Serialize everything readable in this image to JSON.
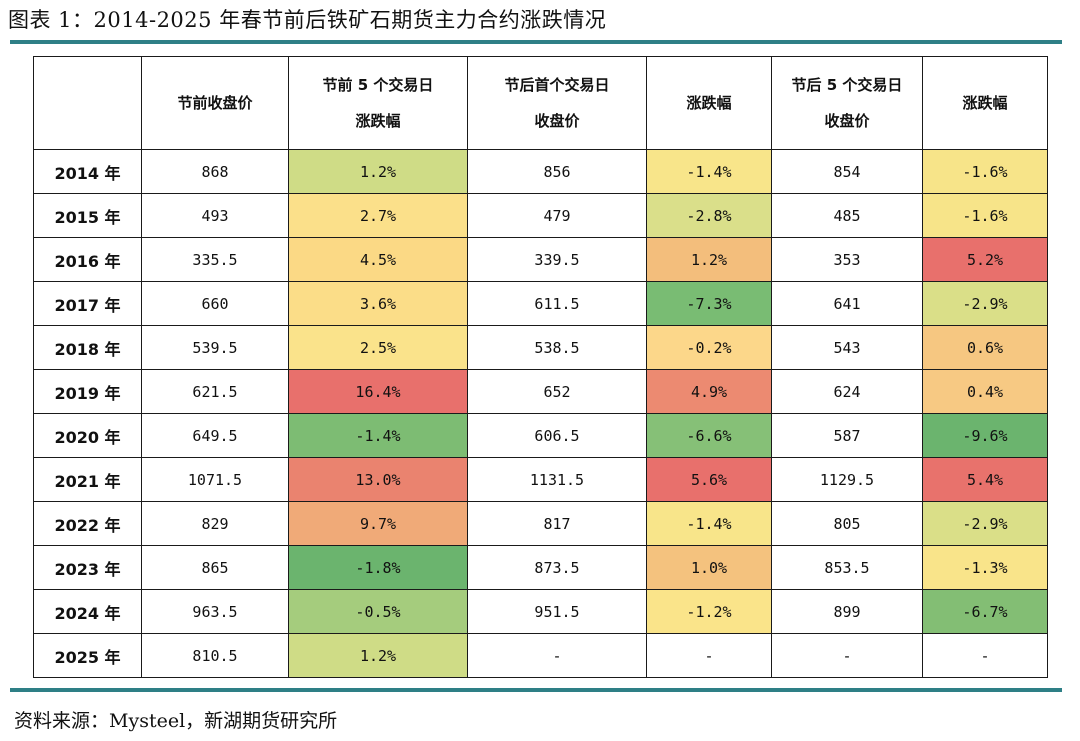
{
  "title": "图表 1：2014-2025 年春节前后铁矿石期货主力合约涨跌情况",
  "source": "资料来源：Mysteel，新湖期货研究所",
  "colors": {
    "rule": "#2e7f86"
  },
  "headers": [
    {
      "lines": [
        ""
      ]
    },
    {
      "lines": [
        "节前收盘价"
      ]
    },
    {
      "lines": [
        "节前 5 个交易日",
        "涨跌幅"
      ]
    },
    {
      "lines": [
        "节后首个交易日",
        "收盘价"
      ]
    },
    {
      "lines": [
        "涨跌幅"
      ]
    },
    {
      "lines": [
        "节后 5 个交易日",
        "收盘价"
      ]
    },
    {
      "lines": [
        "涨跌幅"
      ]
    }
  ],
  "rows": [
    {
      "year": "2014 年",
      "pre_close": "868",
      "pre5": "1.2%",
      "pre5_color": "#cfdc86",
      "post1_close": "856",
      "post1": "-1.4%",
      "post1_color": "#f8e58a",
      "post5_close": "854",
      "post5": "-1.6%",
      "post5_color": "#f7e489"
    },
    {
      "year": "2015 年",
      "pre_close": "493",
      "pre5": "2.7%",
      "pre5_color": "#fbe08a",
      "post1_close": "479",
      "post1": "-2.8%",
      "post1_color": "#dadf8a",
      "post5_close": "485",
      "post5": "-1.6%",
      "post5_color": "#f7e489"
    },
    {
      "year": "2016 年",
      "pre_close": "335.5",
      "pre5": "4.5%",
      "pre5_color": "#fbd985",
      "post1_close": "339.5",
      "post1": "1.2%",
      "post1_color": "#f3be7c",
      "post5_close": "353",
      "post5": "5.2%",
      "post5_color": "#e8706c"
    },
    {
      "year": "2017 年",
      "pre_close": "660",
      "pre5": "3.6%",
      "pre5_color": "#fbdd88",
      "post1_close": "611.5",
      "post1": "-7.3%",
      "post1_color": "#79bc73",
      "post5_close": "641",
      "post5": "-2.9%",
      "post5_color": "#dadf88"
    },
    {
      "year": "2018 年",
      "pre_close": "539.5",
      "pre5": "2.5%",
      "pre5_color": "#fae38b",
      "post1_close": "538.5",
      "post1": "-0.2%",
      "post1_color": "#fcd78a",
      "post5_close": "543",
      "post5": "0.6%",
      "post5_color": "#f6c781"
    },
    {
      "year": "2019 年",
      "pre_close": "621.5",
      "pre5": "16.4%",
      "pre5_color": "#e8706c",
      "post1_close": "652",
      "post1": "4.9%",
      "post1_color": "#ec8a71",
      "post5_close": "624",
      "post5": "0.4%",
      "post5_color": "#f7c983"
    },
    {
      "year": "2020 年",
      "pre_close": "649.5",
      "pre5": "-1.4%",
      "pre5_color": "#7dbc73",
      "post1_close": "606.5",
      "post1": "-6.6%",
      "post1_color": "#86c077",
      "post5_close": "587",
      "post5": "-9.6%",
      "post5_color": "#6bb46e"
    },
    {
      "year": "2021 年",
      "pre_close": "1071.5",
      "pre5": "13.0%",
      "pre5_color": "#ea836f",
      "post1_close": "1131.5",
      "post1": "5.6%",
      "post1_color": "#e8706c",
      "post5_close": "1129.5",
      "post5": "5.4%",
      "post5_color": "#e8726c"
    },
    {
      "year": "2022 年",
      "pre_close": "829",
      "pre5": "9.7%",
      "pre5_color": "#f0aa78",
      "post1_close": "817",
      "post1": "-1.4%",
      "post1_color": "#f8e58a",
      "post5_close": "805",
      "post5": "-2.9%",
      "post5_color": "#dadf88"
    },
    {
      "year": "2023 年",
      "pre_close": "865",
      "pre5": "-1.8%",
      "pre5_color": "#6bb46e",
      "post1_close": "873.5",
      "post1": "1.0%",
      "post1_color": "#f4c27e",
      "post5_close": "853.5",
      "post5": "-1.3%",
      "post5_color": "#f9e48a"
    },
    {
      "year": "2024 年",
      "pre_close": "963.5",
      "pre5": "-0.5%",
      "pre5_color": "#a5cc7d",
      "post1_close": "951.5",
      "post1": "-1.2%",
      "post1_color": "#fae48a",
      "post5_close": "899",
      "post5": "-6.7%",
      "post5_color": "#83be74"
    },
    {
      "year": "2025 年",
      "pre_close": "810.5",
      "pre5": "1.2%",
      "pre5_color": "#cfdc86",
      "post1_close": "-",
      "post1": "-",
      "post1_color": "#ffffff",
      "post5_close": "-",
      "post5": "-",
      "post5_color": "#ffffff"
    }
  ]
}
